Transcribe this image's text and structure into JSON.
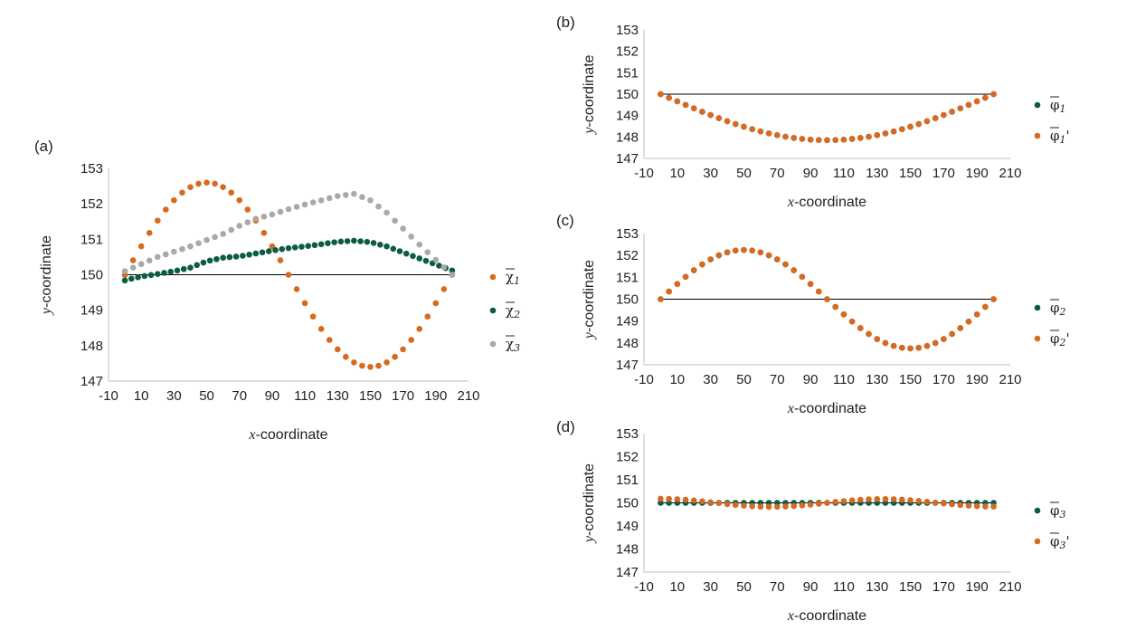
{
  "chart_data": [
    {
      "panel_label": "(a)",
      "type": "scatter",
      "xlabel": "x-coordinate",
      "xlabel_var": "x",
      "xlabel_rest": "-coordinate",
      "ylabel": "y-coordinate",
      "ylabel_var": "y",
      "ylabel_rest": "-coordinate",
      "xlim": [
        -10,
        210
      ],
      "ylim": [
        147,
        153
      ],
      "x_ticks": [
        -10,
        10,
        30,
        50,
        70,
        90,
        110,
        130,
        150,
        170,
        190,
        210
      ],
      "y_ticks": [
        147,
        148,
        149,
        150,
        151,
        152,
        153
      ],
      "reference_line": 150,
      "legend_position": "right",
      "series": [
        {
          "name": "χ1",
          "base": "χ",
          "sub": "1",
          "prime": "",
          "color": "#d9691f",
          "kind": "sine",
          "amplitude": 2.6,
          "offset": 0,
          "sample_step": 5
        },
        {
          "name": "χ2",
          "base": "χ",
          "sub": "2",
          "prime": "",
          "color": "#0c5c45",
          "points": [
            [
              0,
              149.84
            ],
            [
              5,
              149.9
            ],
            [
              10,
              149.95
            ],
            [
              20,
              150.02
            ],
            [
              30,
              150.1
            ],
            [
              40,
              150.2
            ],
            [
              50,
              150.38
            ],
            [
              60,
              150.48
            ],
            [
              70,
              150.52
            ],
            [
              80,
              150.6
            ],
            [
              90,
              150.68
            ],
            [
              100,
              150.75
            ],
            [
              110,
              150.8
            ],
            [
              120,
              150.86
            ],
            [
              130,
              150.93
            ],
            [
              140,
              150.96
            ],
            [
              150,
              150.92
            ],
            [
              160,
              150.8
            ],
            [
              170,
              150.63
            ],
            [
              180,
              150.46
            ],
            [
              190,
              150.29
            ],
            [
              200,
              150.12
            ]
          ],
          "sample_step": 4
        },
        {
          "name": "χ3",
          "base": "χ",
          "sub": "3",
          "prime": "",
          "color": "#a9a9a9",
          "points": [
            [
              0,
              150.1
            ],
            [
              5,
              150.2
            ],
            [
              10,
              150.3
            ],
            [
              20,
              150.5
            ],
            [
              30,
              150.65
            ],
            [
              40,
              150.8
            ],
            [
              50,
              150.98
            ],
            [
              60,
              151.15
            ],
            [
              70,
              151.38
            ],
            [
              80,
              151.58
            ],
            [
              90,
              151.7
            ],
            [
              100,
              151.85
            ],
            [
              110,
              151.98
            ],
            [
              120,
              152.1
            ],
            [
              130,
              152.22
            ],
            [
              140,
              152.28
            ],
            [
              150,
              152.1
            ],
            [
              160,
              151.75
            ],
            [
              170,
              151.3
            ],
            [
              180,
              150.85
            ],
            [
              190,
              150.42
            ],
            [
              200,
              150.0
            ]
          ],
          "sample_step": 5
        }
      ]
    },
    {
      "panel_label": "(b)",
      "type": "scatter",
      "xlabel": "x-coordinate",
      "xlabel_var": "x",
      "xlabel_rest": "-coordinate",
      "ylabel": "y-coordinate",
      "ylabel_var": "y",
      "ylabel_rest": "-coordinate",
      "xlim": [
        -10,
        210
      ],
      "ylim": [
        147,
        153
      ],
      "x_ticks": [
        -10,
        10,
        30,
        50,
        70,
        90,
        110,
        130,
        150,
        170,
        190,
        210
      ],
      "y_ticks": [
        147,
        148,
        149,
        150,
        151,
        152,
        153
      ],
      "reference_line": 150,
      "legend_position": "right",
      "series": [
        {
          "name": "φ1",
          "base": "φ",
          "sub": "1",
          "prime": "",
          "color": "#0c5c45",
          "kind": "halfsine",
          "amplitude": -2.15,
          "offset": 0,
          "sample_step": 5
        },
        {
          "name": "φ1'",
          "base": "φ",
          "sub": "1",
          "prime": "'",
          "color": "#d9691f",
          "kind": "halfsine",
          "amplitude": -2.15,
          "offset": 0,
          "sample_step": 5
        }
      ]
    },
    {
      "panel_label": "(c)",
      "type": "scatter",
      "xlabel": "x-coordinate",
      "xlabel_var": "x",
      "xlabel_rest": "-coordinate",
      "ylabel": "y-coordinate",
      "ylabel_var": "y",
      "ylabel_rest": "-coordinate",
      "xlim": [
        -10,
        210
      ],
      "ylim": [
        147,
        153
      ],
      "x_ticks": [
        -10,
        10,
        30,
        50,
        70,
        90,
        110,
        130,
        150,
        170,
        190,
        210
      ],
      "y_ticks": [
        147,
        148,
        149,
        150,
        151,
        152,
        153
      ],
      "reference_line": 150,
      "legend_position": "right",
      "series": [
        {
          "name": "φ2",
          "base": "φ",
          "sub": "2",
          "prime": "",
          "color": "#0c5c45",
          "kind": "sine",
          "amplitude": 2.25,
          "offset": 0,
          "sample_step": 5
        },
        {
          "name": "φ2'",
          "base": "φ",
          "sub": "2",
          "prime": "'",
          "color": "#d9691f",
          "kind": "sine",
          "amplitude": 2.25,
          "offset": 0,
          "sample_step": 5
        }
      ]
    },
    {
      "panel_label": "(d)",
      "type": "scatter",
      "xlabel": "x-coordinate",
      "xlabel_var": "x",
      "xlabel_rest": "-coordinate",
      "ylabel": "y-coordinate",
      "ylabel_var": "y",
      "ylabel_rest": "-coordinate",
      "xlim": [
        -10,
        210
      ],
      "ylim": [
        147,
        153
      ],
      "x_ticks": [
        -10,
        10,
        30,
        50,
        70,
        90,
        110,
        130,
        150,
        170,
        190,
        210
      ],
      "y_ticks": [
        147,
        148,
        149,
        150,
        151,
        152,
        153
      ],
      "reference_line": 150,
      "legend_position": "right",
      "series": [
        {
          "name": "φ3",
          "base": "φ",
          "sub": "3",
          "prime": "",
          "color": "#0c5c45",
          "kind": "flat",
          "amplitude": 0,
          "offset": 0,
          "sample_step": 5
        },
        {
          "name": "φ3'",
          "base": "φ",
          "sub": "3",
          "prime": "'",
          "color": "#d9691f",
          "kind": "wave3",
          "amplitude": 0.18,
          "offset": 0,
          "sample_step": 5
        }
      ]
    }
  ]
}
